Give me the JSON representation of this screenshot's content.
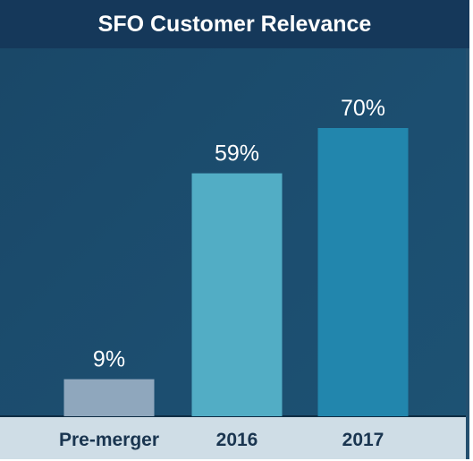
{
  "chart_data": {
    "type": "bar",
    "title": "SFO Customer Relevance",
    "categories": [
      "Pre-merger",
      "2016",
      "2017"
    ],
    "values": [
      9,
      59,
      70
    ],
    "value_labels": [
      "9%",
      "59%",
      "70%"
    ],
    "unit": "%",
    "colors": [
      "#8fa7bd",
      "#52adc5",
      "#2286ad"
    ],
    "ylim": [
      0,
      100
    ],
    "grid": false,
    "legend": "none",
    "xlabel": "",
    "ylabel": ""
  }
}
